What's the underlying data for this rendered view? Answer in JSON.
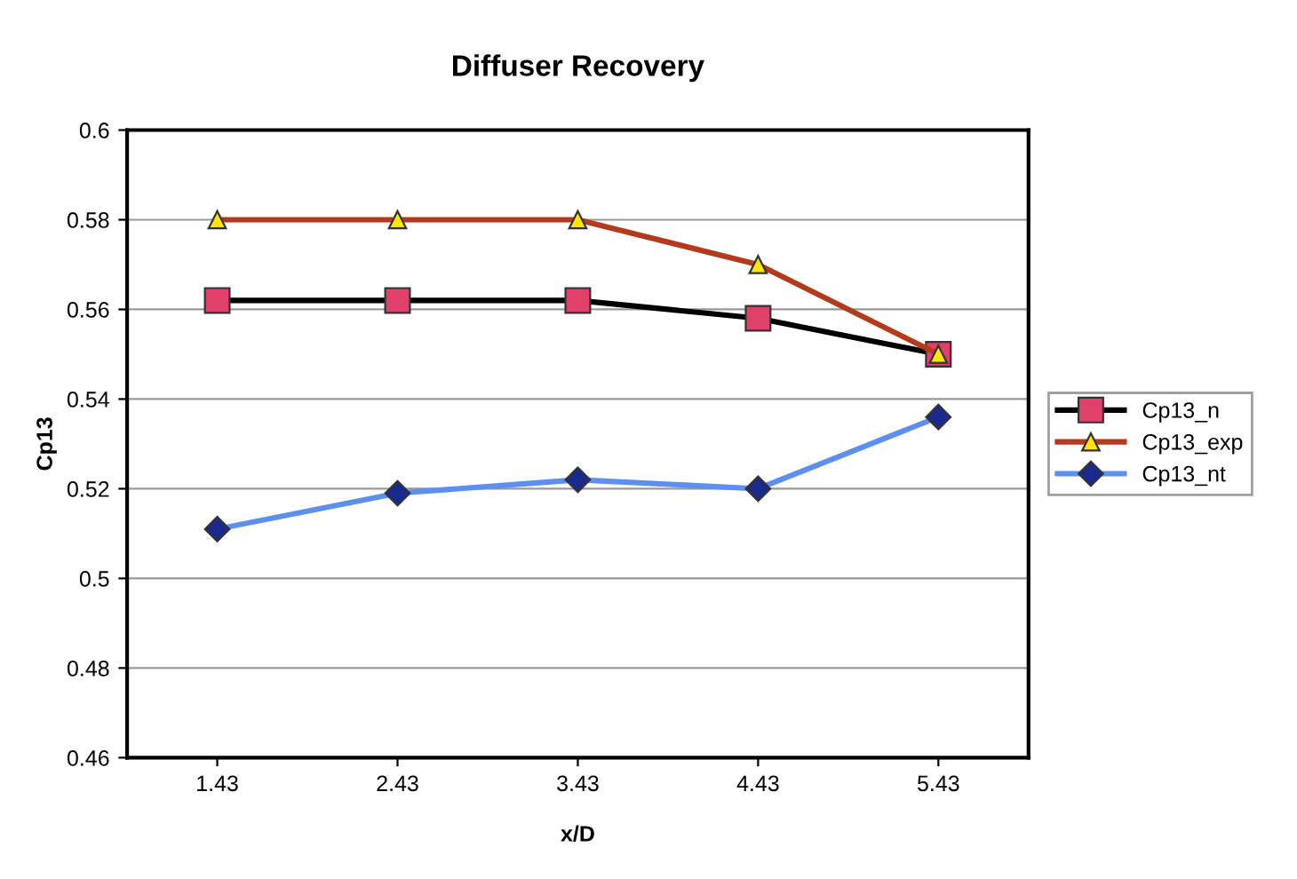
{
  "chart_data": {
    "type": "line",
    "title": "Diffuser Recovery",
    "xlabel": "x/D",
    "ylabel": "Cp13",
    "categories": [
      "1.43",
      "2.43",
      "3.43",
      "4.43",
      "5.43"
    ],
    "series": [
      {
        "name": "Cp13_n",
        "color": "#000000",
        "marker": "square",
        "values": [
          0.562,
          0.562,
          0.562,
          0.558,
          0.55
        ]
      },
      {
        "name": "Cp13_exp",
        "color": "#b5391c",
        "marker": "triangle",
        "values": [
          0.58,
          0.58,
          0.58,
          0.57,
          0.55
        ]
      },
      {
        "name": "Cp13_nt",
        "color": "#5b8ff0",
        "marker": "diamond",
        "values": [
          0.511,
          0.519,
          0.522,
          0.52,
          0.536
        ]
      }
    ],
    "ylim": [
      0.46,
      0.6
    ],
    "yticks": [
      0.46,
      0.48,
      0.5,
      0.52,
      0.54,
      0.56,
      0.58,
      0.6
    ],
    "grid": "y",
    "legend": "right"
  }
}
